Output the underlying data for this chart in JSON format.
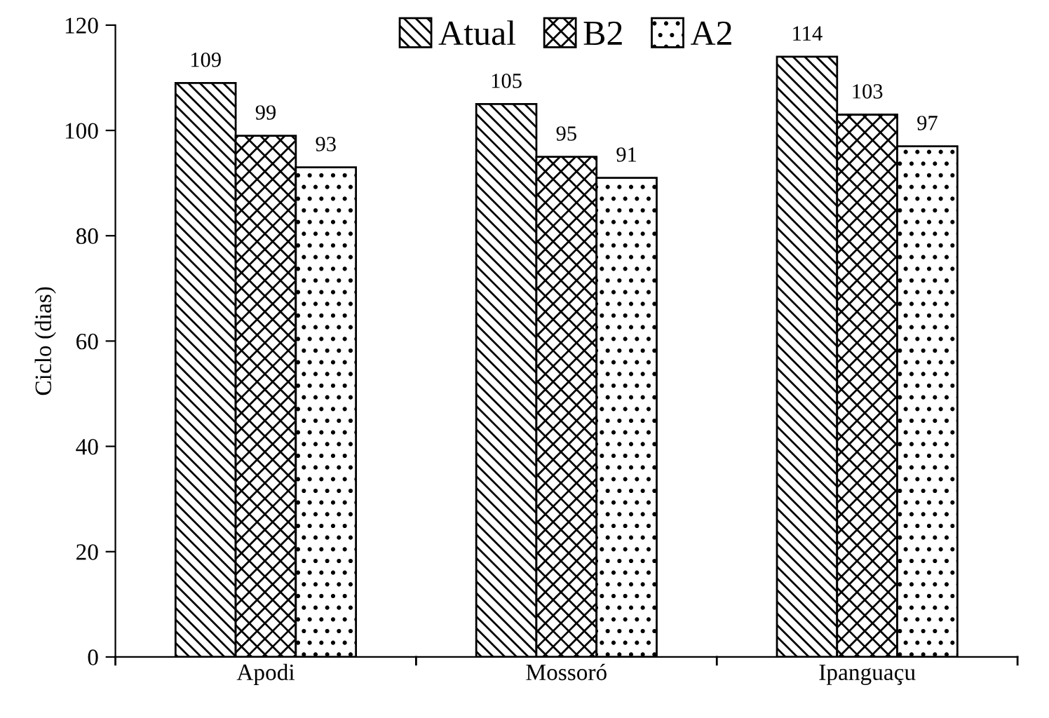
{
  "chart_data": {
    "type": "bar",
    "ylabel": "Ciclo (dias)",
    "categories": [
      "Apodi",
      "Mossoró",
      "Ipanguaçu"
    ],
    "series": [
      {
        "name": "Atual",
        "color": "#000000",
        "values": [
          109,
          105,
          114
        ]
      },
      {
        "name": "B2",
        "color": "#000000",
        "values": [
          99,
          95,
          103
        ]
      },
      {
        "name": "A2",
        "color": "#000000",
        "values": [
          93,
          91,
          97
        ]
      }
    ],
    "ylim": [
      0,
      120
    ],
    "yticks": [
      0,
      20,
      40,
      60,
      80,
      100,
      120
    ],
    "data_labels": true,
    "grid": false,
    "legend": "top"
  }
}
